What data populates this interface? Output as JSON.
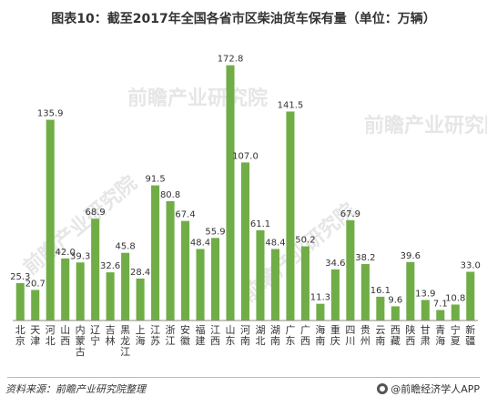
{
  "title": "图表10：截至2017年全国各省市区柴油货车保有量（单位：万辆）",
  "watermark": "前瞻产业研究院",
  "footer": {
    "source": "资料来源：前瞻产业研究院整理",
    "brand": "@前瞻经济学人APP"
  },
  "colors": {
    "bar": "#70AD47",
    "axis": "#888888"
  },
  "chart_data": {
    "type": "bar",
    "title": "图表10：截至2017年全国各省市区柴油货车保有量（单位：万辆）",
    "xlabel": "",
    "ylabel": "",
    "grid": false,
    "legend": "none",
    "categories": [
      "北京",
      "天津",
      "河北",
      "山西",
      "内蒙古",
      "辽宁",
      "吉林",
      "黑龙江",
      "上海",
      "江苏",
      "浙江",
      "安徽",
      "福建",
      "江西",
      "山东",
      "河南",
      "湖北",
      "湖南",
      "广东",
      "广西",
      "海南",
      "重庆",
      "四川",
      "贵州",
      "云南",
      "西藏",
      "陕西",
      "甘肃",
      "青海",
      "宁夏",
      "新疆"
    ],
    "values": [
      25.3,
      20.7,
      135.9,
      42.0,
      39.3,
      68.9,
      32.6,
      45.8,
      28.4,
      91.5,
      80.8,
      67.4,
      48.4,
      55.9,
      172.8,
      107.0,
      61.1,
      48.4,
      141.5,
      50.2,
      11.3,
      34.6,
      67.9,
      38.2,
      16.1,
      9.6,
      39.6,
      13.9,
      7.1,
      10.8,
      33.0
    ],
    "value_labels": [
      "25.3",
      "20.7",
      "135.9",
      "42.0",
      "39.3",
      "68.9",
      "32.6",
      "45.8",
      "28.4",
      "91.5",
      "80.8",
      "67.4",
      "48.4",
      "55.9",
      "172.8",
      "107.0",
      "61.1",
      "48.4",
      "141.5",
      "50.2",
      "11.3",
      "34.6",
      "67.9",
      "38.2",
      "16.1",
      "9.6",
      "39.6",
      "13.9",
      "7.1",
      "10.8",
      "33.0"
    ],
    "ylim": [
      0,
      180
    ]
  }
}
